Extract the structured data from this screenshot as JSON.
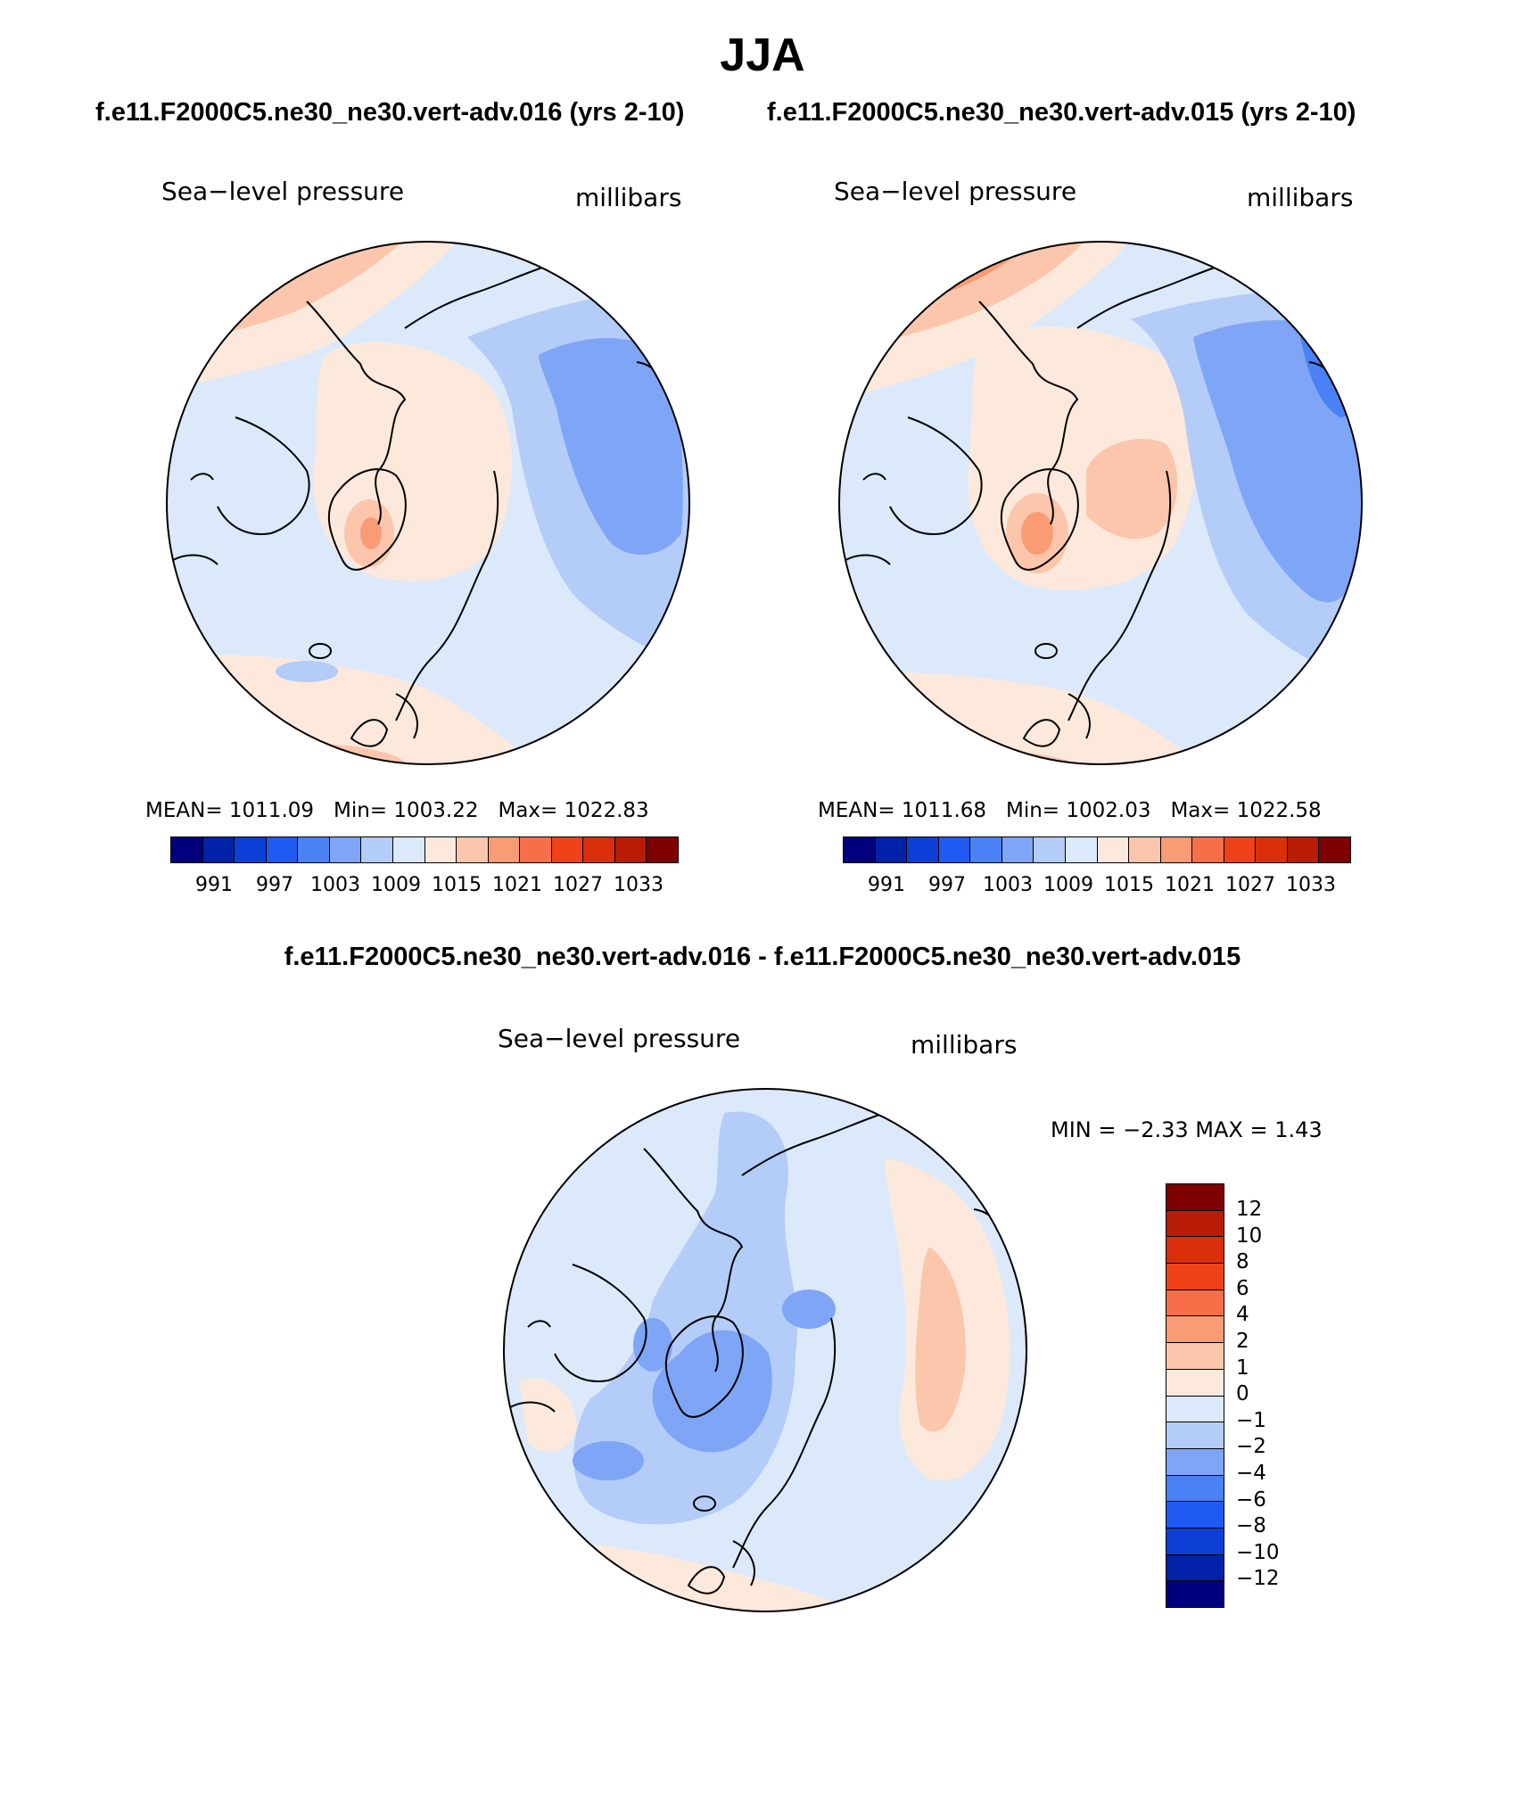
{
  "title": "JJA",
  "left_panel": {
    "case_title": "f.e11.F2000C5.ne30_ne30.vert-adv.016 (yrs 2-10)",
    "field": "Sea−level pressure",
    "units": "millibars",
    "mean_label": "MEAN=",
    "mean_value": "1011.09",
    "min_label": "Min=",
    "min_value": "1003.22",
    "max_label": "Max=",
    "max_value": "1022.83"
  },
  "right_panel": {
    "case_title": "f.e11.F2000C5.ne30_ne30.vert-adv.015 (yrs 2-10)",
    "field": "Sea−level pressure",
    "units": "millibars",
    "mean_label": "MEAN=",
    "mean_value": "1011.68",
    "min_label": "Min=",
    "min_value": "1002.03",
    "max_label": "Max=",
    "max_value": "1022.58"
  },
  "diff_panel": {
    "case_title": "f.e11.F2000C5.ne30_ne30.vert-adv.016 - f.e11.F2000C5.ne30_ne30.vert-adv.015",
    "field": "Sea−level pressure",
    "units": "millibars",
    "min_max_text": "MIN =   −2.33 MAX =    1.43"
  },
  "colors": {
    "abs_scale": [
      "#00007f",
      "#0022a8",
      "#0d3fd6",
      "#1f5af2",
      "#4a82f5",
      "#7fa5f6",
      "#b3ccf8",
      "#dbe9fb",
      "#fde9dc",
      "#fbc6ab",
      "#f99b75",
      "#f76f48",
      "#f04219",
      "#d92f0b",
      "#b81c07",
      "#7f0000"
    ],
    "diff_scale": [
      "#7f0000",
      "#b81c07",
      "#d92f0b",
      "#f04219",
      "#f76f48",
      "#f99b75",
      "#fbc6ab",
      "#fde9dc",
      "#dbe9fb",
      "#b3ccf8",
      "#7fa5f6",
      "#4a82f5",
      "#1f5af2",
      "#0d3fd6",
      "#0022a8",
      "#00007f"
    ]
  },
  "chart_data": [
    {
      "type": "heatmap",
      "projection": "north-polar-stereographic",
      "title": "Sea−level pressure",
      "units": "millibars",
      "colorbar_levels": [
        991,
        997,
        1003,
        1009,
        1015,
        1021,
        1027,
        1033
      ],
      "colorbar_tick_labels": [
        "991",
        "997",
        "1003",
        "1009",
        "1015",
        "1021",
        "1027",
        "1033"
      ],
      "mean": 1011.09,
      "min": 1003.22,
      "max": 1022.83
    },
    {
      "type": "heatmap",
      "projection": "north-polar-stereographic",
      "title": "Sea−level pressure",
      "units": "millibars",
      "colorbar_levels": [
        991,
        997,
        1003,
        1009,
        1015,
        1021,
        1027,
        1033
      ],
      "colorbar_tick_labels": [
        "991",
        "997",
        "1003",
        "1009",
        "1015",
        "1021",
        "1027",
        "1033"
      ],
      "mean": 1011.68,
      "min": 1002.03,
      "max": 1022.58
    },
    {
      "type": "heatmap",
      "projection": "north-polar-stereographic",
      "title": "Sea−level pressure",
      "units": "millibars",
      "colorbar_levels": [
        12,
        10,
        8,
        6,
        4,
        2,
        1,
        0,
        -1,
        -2,
        -4,
        -6,
        -8,
        -10,
        -12
      ],
      "colorbar_tick_labels": [
        "12",
        "10",
        "8",
        "6",
        "4",
        "2",
        "1",
        "0",
        "−1",
        "−2",
        "−4",
        "−6",
        "−8",
        "−10",
        "−12"
      ],
      "min": -2.33,
      "max": 1.43
    }
  ]
}
